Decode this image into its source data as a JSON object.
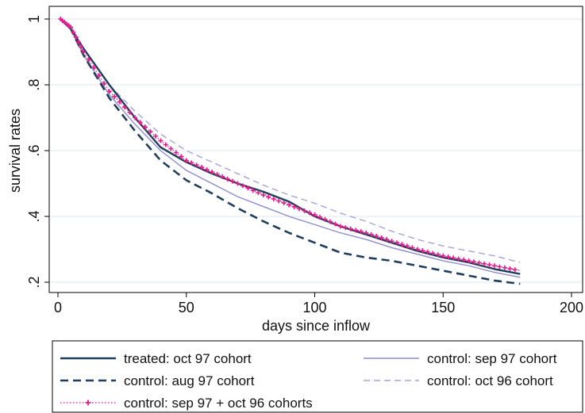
{
  "chart_data": {
    "type": "line",
    "xlabel": "days since inflow",
    "ylabel": "survival rates",
    "xlim": [
      0,
      200
    ],
    "ylim": [
      0.2,
      1.0
    ],
    "xticks": [
      0,
      50,
      100,
      150,
      200
    ],
    "xtick_labels": [
      "0",
      "50",
      "100",
      "150",
      "200"
    ],
    "yticks": [
      0.2,
      0.4,
      0.6,
      0.8,
      1.0
    ],
    "ytick_labels": [
      ".2",
      ".4",
      ".6",
      ".8",
      "1"
    ],
    "grid": "horizontal",
    "legend_position": "bottom",
    "series": [
      {
        "name": "treated: oct 97 cohort",
        "style": "solid-thick",
        "color": "#1f3e5e",
        "x": [
          1,
          5,
          10,
          20,
          30,
          40,
          50,
          60,
          70,
          80,
          90,
          100,
          110,
          120,
          130,
          140,
          150,
          160,
          170,
          180
        ],
        "y": [
          1.0,
          0.97,
          0.91,
          0.8,
          0.7,
          0.61,
          0.565,
          0.53,
          0.5,
          0.475,
          0.445,
          0.4,
          0.37,
          0.345,
          0.32,
          0.295,
          0.275,
          0.26,
          0.24,
          0.225
        ]
      },
      {
        "name": "control: aug 97 cohort",
        "style": "dashed-thick",
        "color": "#1f3e5e",
        "x": [
          1,
          5,
          10,
          20,
          30,
          40,
          50,
          60,
          70,
          80,
          90,
          100,
          110,
          120,
          130,
          140,
          150,
          160,
          170,
          180
        ],
        "y": [
          1.0,
          0.97,
          0.89,
          0.76,
          0.66,
          0.57,
          0.51,
          0.47,
          0.425,
          0.385,
          0.35,
          0.32,
          0.29,
          0.275,
          0.265,
          0.25,
          0.235,
          0.22,
          0.205,
          0.195
        ]
      },
      {
        "name": "control: sep 97 + oct 96 cohorts",
        "style": "dotted-plus",
        "color": "#e8198b",
        "x": [
          1,
          5,
          10,
          20,
          30,
          40,
          50,
          60,
          70,
          80,
          90,
          100,
          110,
          120,
          130,
          140,
          150,
          160,
          170,
          180
        ],
        "y": [
          1.0,
          0.975,
          0.9,
          0.78,
          0.7,
          0.63,
          0.57,
          0.535,
          0.5,
          0.465,
          0.435,
          0.405,
          0.37,
          0.35,
          0.325,
          0.3,
          0.28,
          0.265,
          0.25,
          0.235
        ]
      },
      {
        "name": "control: sep 97 cohort",
        "style": "solid-thin",
        "color": "#8c8ccf",
        "x": [
          1,
          5,
          10,
          20,
          30,
          40,
          50,
          60,
          70,
          80,
          90,
          100,
          110,
          120,
          130,
          140,
          150,
          160,
          170,
          180
        ],
        "y": [
          1.0,
          0.97,
          0.89,
          0.77,
          0.68,
          0.6,
          0.54,
          0.5,
          0.46,
          0.43,
          0.4,
          0.375,
          0.35,
          0.33,
          0.305,
          0.285,
          0.265,
          0.25,
          0.23,
          0.215
        ]
      },
      {
        "name": "control: oct 96 cohort",
        "style": "dashed-thin",
        "color": "#a4a4d8",
        "x": [
          1,
          5,
          10,
          20,
          30,
          40,
          50,
          60,
          70,
          80,
          90,
          100,
          110,
          120,
          130,
          140,
          150,
          160,
          170,
          180
        ],
        "y": [
          1.0,
          0.98,
          0.91,
          0.8,
          0.72,
          0.65,
          0.6,
          0.565,
          0.53,
          0.495,
          0.465,
          0.44,
          0.41,
          0.385,
          0.355,
          0.33,
          0.31,
          0.295,
          0.28,
          0.26
        ]
      }
    ],
    "legend": {
      "items": [
        "treated: oct 97 cohort",
        "control: sep 97 cohort",
        "control: aug 97 cohort",
        "control: oct 96 cohort",
        "control: sep 97 + oct 96 cohorts"
      ]
    }
  }
}
